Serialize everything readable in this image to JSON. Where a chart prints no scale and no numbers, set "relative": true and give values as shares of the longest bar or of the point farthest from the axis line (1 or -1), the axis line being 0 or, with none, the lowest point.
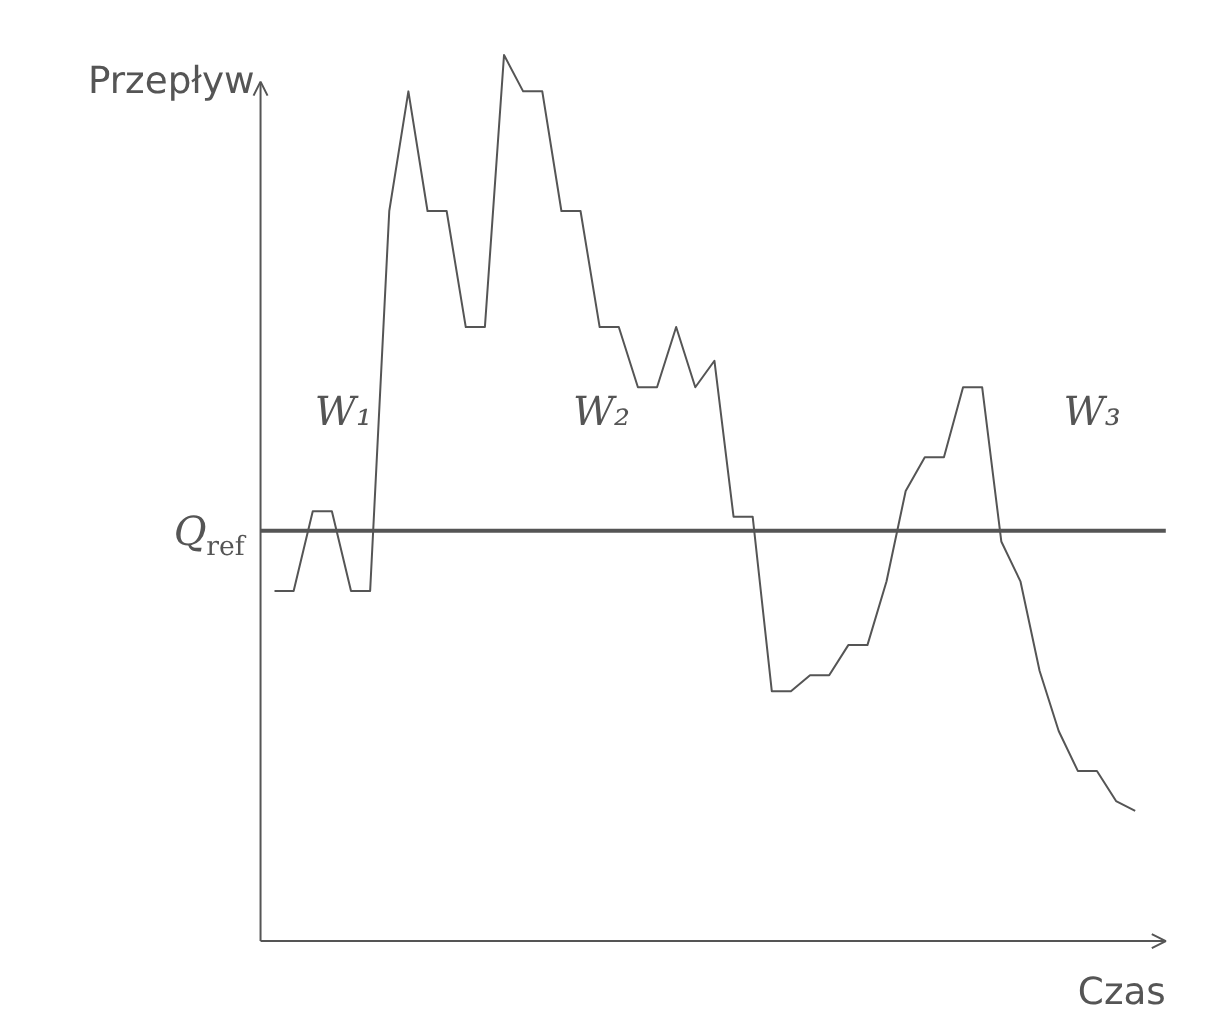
{
  "chart_data": {
    "type": "line",
    "relative": true,
    "xlabel": "Czas",
    "ylabel": "Przepływ",
    "color": "#555555",
    "categories": [
      null,
      null,
      null,
      null,
      null,
      null,
      null,
      null,
      null,
      null,
      null,
      null,
      null,
      null,
      null,
      null,
      null,
      null,
      null,
      null,
      null,
      null,
      null,
      null,
      null,
      null,
      null,
      null,
      null,
      null,
      null,
      null,
      null,
      null,
      null,
      null,
      null,
      null,
      null,
      null,
      null,
      null,
      null,
      null,
      null,
      null
    ],
    "values": [
      0.395,
      0.395,
      0.485,
      0.485,
      0.395,
      0.395,
      0.824,
      0.959,
      0.824,
      0.824,
      0.693,
      0.693,
      1,
      0.959,
      0.959,
      0.824,
      0.824,
      0.693,
      0.693,
      0.625,
      0.625,
      0.693,
      0.625,
      0.655,
      0.479,
      0.479,
      0.282,
      0.282,
      0.3,
      0.3,
      0.334,
      0.334,
      0.406,
      0.508,
      0.546,
      0.546,
      0.625,
      0.625,
      0.451,
      0.406,
      0.305,
      0.237,
      0.192,
      0.192,
      0.158,
      0.147
    ],
    "ref_lines": [
      {
        "axis": "y",
        "value": 0.463,
        "label": "Q$_{ref}$",
        "color": "#555555"
      }
    ],
    "annotations": [
      "W₁",
      "W₂",
      "W₃"
    ],
    "grid": false
  }
}
